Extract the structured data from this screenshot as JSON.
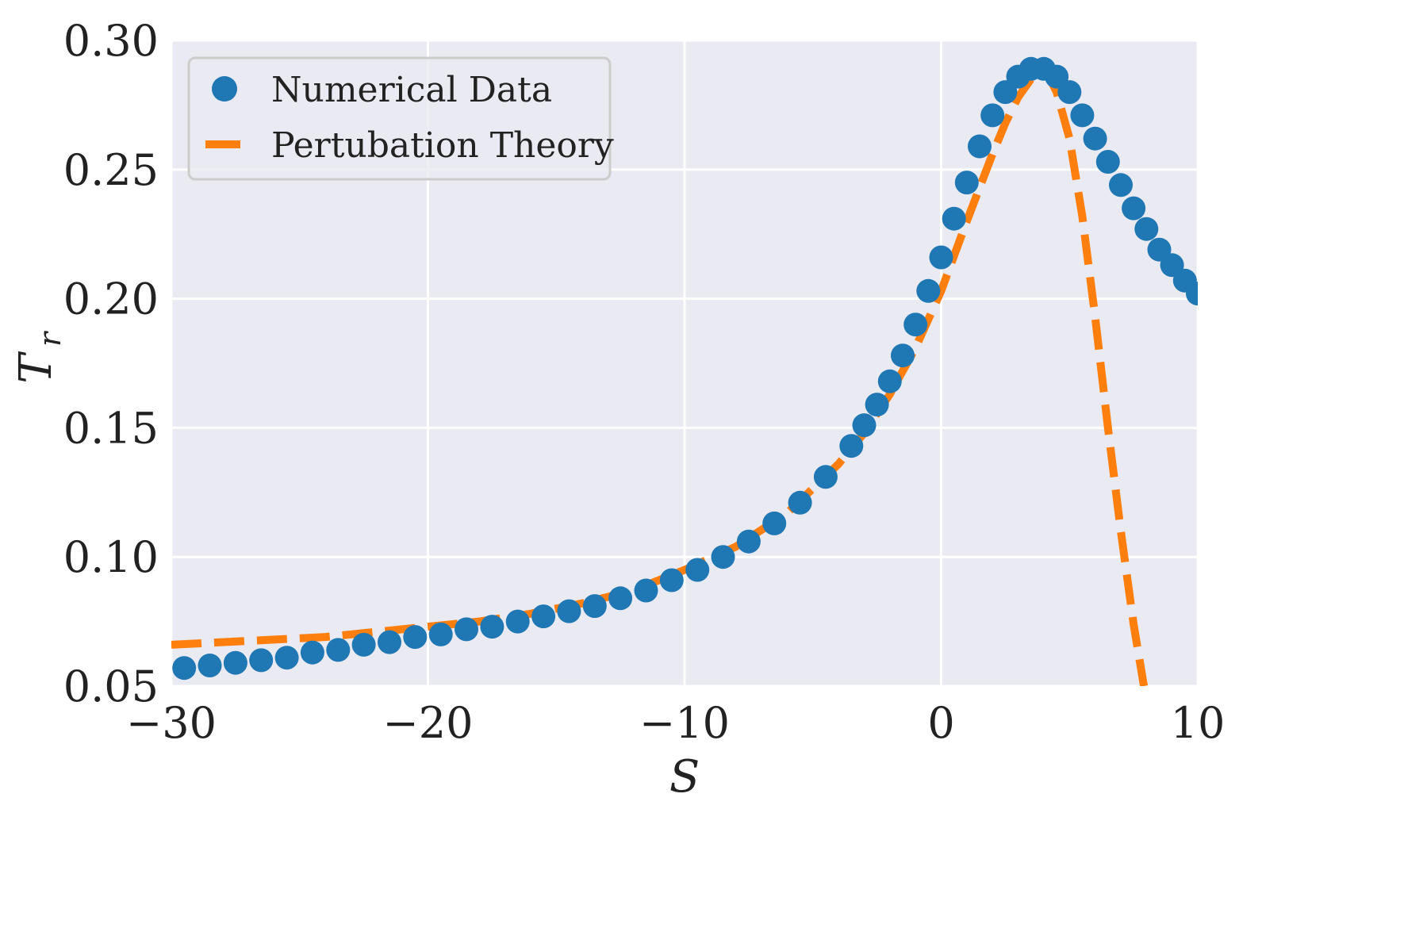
{
  "chart_data": {
    "type": "line",
    "title": "",
    "xlabel": "S",
    "ylabel_main": "T",
    "ylabel_sub": "r",
    "xlim": [
      -30,
      10
    ],
    "ylim": [
      0.05,
      0.3
    ],
    "grid": true,
    "legend_position": "top-left",
    "x_ticks": [
      -30,
      -20,
      -10,
      0,
      10
    ],
    "x_tick_labels": [
      "−30",
      "−20",
      "−10",
      "0",
      "10"
    ],
    "y_ticks": [
      0.05,
      0.1,
      0.15,
      0.2,
      0.25,
      0.3
    ],
    "y_tick_labels": [
      "0.05",
      "0.10",
      "0.15",
      "0.20",
      "0.25",
      "0.30"
    ],
    "colors": {
      "background": "#eaeaf2",
      "grid": "#ffffff",
      "numerical": "#1f77b4",
      "perturbation": "#ff7f0e"
    },
    "series": [
      {
        "name": "Numerical Data",
        "style": "markers",
        "x": [
          -29.5,
          -28.5,
          -27.5,
          -26.5,
          -25.5,
          -24.5,
          -23.5,
          -22.5,
          -21.5,
          -20.5,
          -19.5,
          -18.5,
          -17.5,
          -16.5,
          -15.5,
          -14.5,
          -13.5,
          -12.5,
          -11.5,
          -10.5,
          -9.5,
          -8.5,
          -7.5,
          -6.5,
          -5.5,
          -4.5,
          -3.5,
          -3.0,
          -2.5,
          -2.0,
          -1.5,
          -1.0,
          -0.5,
          0.0,
          0.5,
          1.0,
          1.5,
          2.0,
          2.5,
          3.0,
          3.5,
          4.0,
          4.5,
          5.0,
          5.5,
          6.0,
          6.5,
          7.0,
          7.5,
          8.0,
          8.5,
          9.0,
          9.5,
          10.0
        ],
        "values": [
          0.057,
          0.058,
          0.059,
          0.06,
          0.061,
          0.063,
          0.064,
          0.066,
          0.067,
          0.069,
          0.07,
          0.072,
          0.073,
          0.075,
          0.077,
          0.079,
          0.081,
          0.084,
          0.087,
          0.091,
          0.095,
          0.1,
          0.106,
          0.113,
          0.121,
          0.131,
          0.143,
          0.151,
          0.159,
          0.168,
          0.178,
          0.19,
          0.203,
          0.216,
          0.231,
          0.245,
          0.259,
          0.271,
          0.28,
          0.286,
          0.289,
          0.289,
          0.286,
          0.28,
          0.271,
          0.262,
          0.253,
          0.244,
          0.235,
          0.227,
          0.219,
          0.213,
          0.207,
          0.202
        ]
      },
      {
        "name": "Pertubation Theory",
        "style": "dashed",
        "x": [
          -30,
          -28,
          -26,
          -24,
          -22,
          -20,
          -18,
          -16,
          -14,
          -12,
          -10,
          -8,
          -6,
          -4,
          -3,
          -2,
          -1,
          0,
          1,
          2,
          2.5,
          3.0,
          3.5,
          3.9,
          4.2,
          4.5,
          5.0,
          5.5,
          6.0,
          6.5,
          7.0,
          7.5,
          7.9
        ],
        "values": [
          0.066,
          0.067,
          0.068,
          0.069,
          0.071,
          0.073,
          0.075,
          0.078,
          0.082,
          0.087,
          0.095,
          0.104,
          0.117,
          0.136,
          0.148,
          0.163,
          0.181,
          0.203,
          0.23,
          0.256,
          0.268,
          0.278,
          0.285,
          0.288,
          0.286,
          0.28,
          0.262,
          0.232,
          0.193,
          0.15,
          0.11,
          0.074,
          0.05
        ]
      }
    ]
  }
}
